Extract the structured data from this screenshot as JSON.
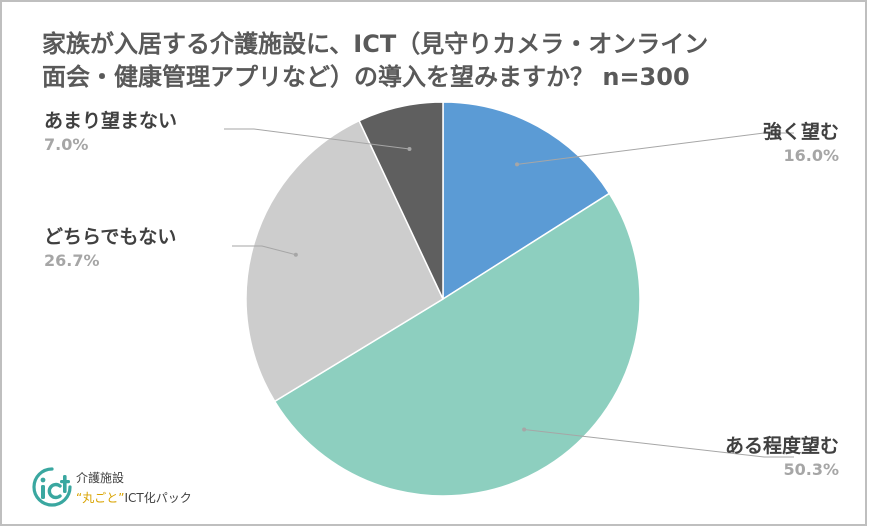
{
  "title_line1": "家族が入居する介護施設に、ICT（見守りカメラ・オンライン",
  "title_line2": "面会・健康管理アプリなど）の導入を望みますか？ n=300",
  "chart_data": {
    "type": "pie",
    "title": "家族が入居する介護施設に、ICT（見守りカメラ・オンライン面会・健康管理アプリなど）の導入を望みますか？ n=300",
    "slices": [
      {
        "label": "強く望む",
        "value": 16.0,
        "pct_label": "16.0%",
        "color": "#5b9bd5"
      },
      {
        "label": "ある程度望む",
        "value": 50.3,
        "pct_label": "50.3%",
        "color": "#8dcfbf"
      },
      {
        "label": "どちらでもない",
        "value": 26.7,
        "pct_label": "26.7%",
        "color": "#cdcdcd"
      },
      {
        "label": "あまり望まない",
        "value": 7.0,
        "pct_label": "7.0%",
        "color": "#5f5f5f"
      }
    ],
    "start_angle": "12 o'clock",
    "direction": "clockwise",
    "legend": "none (leader-line labels)"
  },
  "logo": {
    "line1": "介護施設",
    "open_quote": "“",
    "marugoto": "丸ごと",
    "close_quote": "”",
    "line2_rest": "ICT化パック"
  }
}
